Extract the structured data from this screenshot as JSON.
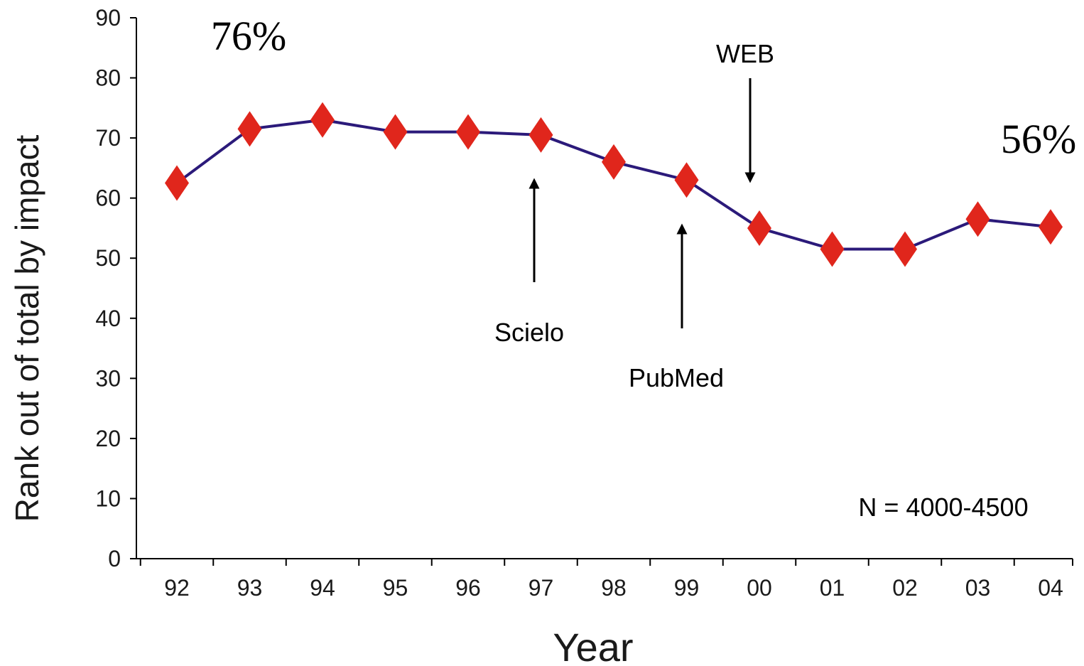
{
  "chart_data": {
    "type": "line",
    "title": "",
    "xlabel": "Year",
    "ylabel": "Rank out of total by impact",
    "categories": [
      "92",
      "93",
      "94",
      "95",
      "96",
      "97",
      "98",
      "99",
      "00",
      "01",
      "02",
      "03",
      "04"
    ],
    "series": [
      {
        "values": [
          62.5,
          71.5,
          73,
          71,
          71,
          70.5,
          66,
          63,
          55,
          51.5,
          51.5,
          56.5,
          55.2
        ],
        "line_color": "#2b1a7a",
        "marker": "diamond",
        "marker_color": "#e0261c"
      }
    ],
    "ylim": [
      0,
      90
    ],
    "yticks": [
      0,
      10,
      20,
      30,
      40,
      50,
      60,
      70,
      80,
      90
    ],
    "grid": false,
    "legend": "none",
    "annotations": {
      "start_percent": "76%",
      "end_percent": "56%",
      "sample_size": "N = 4000-4500",
      "events": [
        {
          "label": "Scielo",
          "year": "97",
          "arrow": "up"
        },
        {
          "label": "PubMed",
          "year": "99",
          "arrow": "up"
        },
        {
          "label": "WEB",
          "year": "00",
          "arrow": "down"
        }
      ]
    }
  }
}
